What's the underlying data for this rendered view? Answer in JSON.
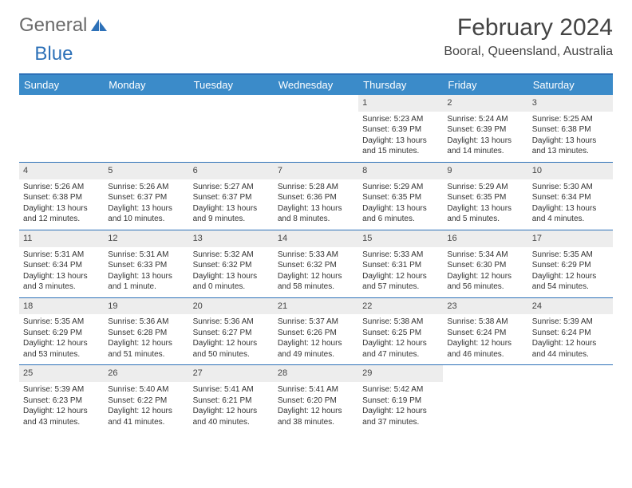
{
  "logo": {
    "part1": "General",
    "part2": "Blue"
  },
  "title": "February 2024",
  "location": "Booral, Queensland, Australia",
  "colors": {
    "header_bg": "#3b8bc9",
    "border": "#2d71b8",
    "daynum_bg": "#ededed",
    "text": "#333333",
    "logo_gray": "#6a6a6a",
    "logo_blue": "#2d71b8"
  },
  "day_names": [
    "Sunday",
    "Monday",
    "Tuesday",
    "Wednesday",
    "Thursday",
    "Friday",
    "Saturday"
  ],
  "weeks": [
    [
      {
        "empty": true
      },
      {
        "empty": true
      },
      {
        "empty": true
      },
      {
        "empty": true
      },
      {
        "num": "1",
        "sunrise": "Sunrise: 5:23 AM",
        "sunset": "Sunset: 6:39 PM",
        "daylight": "Daylight: 13 hours and 15 minutes."
      },
      {
        "num": "2",
        "sunrise": "Sunrise: 5:24 AM",
        "sunset": "Sunset: 6:39 PM",
        "daylight": "Daylight: 13 hours and 14 minutes."
      },
      {
        "num": "3",
        "sunrise": "Sunrise: 5:25 AM",
        "sunset": "Sunset: 6:38 PM",
        "daylight": "Daylight: 13 hours and 13 minutes."
      }
    ],
    [
      {
        "num": "4",
        "sunrise": "Sunrise: 5:26 AM",
        "sunset": "Sunset: 6:38 PM",
        "daylight": "Daylight: 13 hours and 12 minutes."
      },
      {
        "num": "5",
        "sunrise": "Sunrise: 5:26 AM",
        "sunset": "Sunset: 6:37 PM",
        "daylight": "Daylight: 13 hours and 10 minutes."
      },
      {
        "num": "6",
        "sunrise": "Sunrise: 5:27 AM",
        "sunset": "Sunset: 6:37 PM",
        "daylight": "Daylight: 13 hours and 9 minutes."
      },
      {
        "num": "7",
        "sunrise": "Sunrise: 5:28 AM",
        "sunset": "Sunset: 6:36 PM",
        "daylight": "Daylight: 13 hours and 8 minutes."
      },
      {
        "num": "8",
        "sunrise": "Sunrise: 5:29 AM",
        "sunset": "Sunset: 6:35 PM",
        "daylight": "Daylight: 13 hours and 6 minutes."
      },
      {
        "num": "9",
        "sunrise": "Sunrise: 5:29 AM",
        "sunset": "Sunset: 6:35 PM",
        "daylight": "Daylight: 13 hours and 5 minutes."
      },
      {
        "num": "10",
        "sunrise": "Sunrise: 5:30 AM",
        "sunset": "Sunset: 6:34 PM",
        "daylight": "Daylight: 13 hours and 4 minutes."
      }
    ],
    [
      {
        "num": "11",
        "sunrise": "Sunrise: 5:31 AM",
        "sunset": "Sunset: 6:34 PM",
        "daylight": "Daylight: 13 hours and 3 minutes."
      },
      {
        "num": "12",
        "sunrise": "Sunrise: 5:31 AM",
        "sunset": "Sunset: 6:33 PM",
        "daylight": "Daylight: 13 hours and 1 minute."
      },
      {
        "num": "13",
        "sunrise": "Sunrise: 5:32 AM",
        "sunset": "Sunset: 6:32 PM",
        "daylight": "Daylight: 13 hours and 0 minutes."
      },
      {
        "num": "14",
        "sunrise": "Sunrise: 5:33 AM",
        "sunset": "Sunset: 6:32 PM",
        "daylight": "Daylight: 12 hours and 58 minutes."
      },
      {
        "num": "15",
        "sunrise": "Sunrise: 5:33 AM",
        "sunset": "Sunset: 6:31 PM",
        "daylight": "Daylight: 12 hours and 57 minutes."
      },
      {
        "num": "16",
        "sunrise": "Sunrise: 5:34 AM",
        "sunset": "Sunset: 6:30 PM",
        "daylight": "Daylight: 12 hours and 56 minutes."
      },
      {
        "num": "17",
        "sunrise": "Sunrise: 5:35 AM",
        "sunset": "Sunset: 6:29 PM",
        "daylight": "Daylight: 12 hours and 54 minutes."
      }
    ],
    [
      {
        "num": "18",
        "sunrise": "Sunrise: 5:35 AM",
        "sunset": "Sunset: 6:29 PM",
        "daylight": "Daylight: 12 hours and 53 minutes."
      },
      {
        "num": "19",
        "sunrise": "Sunrise: 5:36 AM",
        "sunset": "Sunset: 6:28 PM",
        "daylight": "Daylight: 12 hours and 51 minutes."
      },
      {
        "num": "20",
        "sunrise": "Sunrise: 5:36 AM",
        "sunset": "Sunset: 6:27 PM",
        "daylight": "Daylight: 12 hours and 50 minutes."
      },
      {
        "num": "21",
        "sunrise": "Sunrise: 5:37 AM",
        "sunset": "Sunset: 6:26 PM",
        "daylight": "Daylight: 12 hours and 49 minutes."
      },
      {
        "num": "22",
        "sunrise": "Sunrise: 5:38 AM",
        "sunset": "Sunset: 6:25 PM",
        "daylight": "Daylight: 12 hours and 47 minutes."
      },
      {
        "num": "23",
        "sunrise": "Sunrise: 5:38 AM",
        "sunset": "Sunset: 6:24 PM",
        "daylight": "Daylight: 12 hours and 46 minutes."
      },
      {
        "num": "24",
        "sunrise": "Sunrise: 5:39 AM",
        "sunset": "Sunset: 6:24 PM",
        "daylight": "Daylight: 12 hours and 44 minutes."
      }
    ],
    [
      {
        "num": "25",
        "sunrise": "Sunrise: 5:39 AM",
        "sunset": "Sunset: 6:23 PM",
        "daylight": "Daylight: 12 hours and 43 minutes."
      },
      {
        "num": "26",
        "sunrise": "Sunrise: 5:40 AM",
        "sunset": "Sunset: 6:22 PM",
        "daylight": "Daylight: 12 hours and 41 minutes."
      },
      {
        "num": "27",
        "sunrise": "Sunrise: 5:41 AM",
        "sunset": "Sunset: 6:21 PM",
        "daylight": "Daylight: 12 hours and 40 minutes."
      },
      {
        "num": "28",
        "sunrise": "Sunrise: 5:41 AM",
        "sunset": "Sunset: 6:20 PM",
        "daylight": "Daylight: 12 hours and 38 minutes."
      },
      {
        "num": "29",
        "sunrise": "Sunrise: 5:42 AM",
        "sunset": "Sunset: 6:19 PM",
        "daylight": "Daylight: 12 hours and 37 minutes."
      },
      {
        "empty": true
      },
      {
        "empty": true
      }
    ]
  ]
}
